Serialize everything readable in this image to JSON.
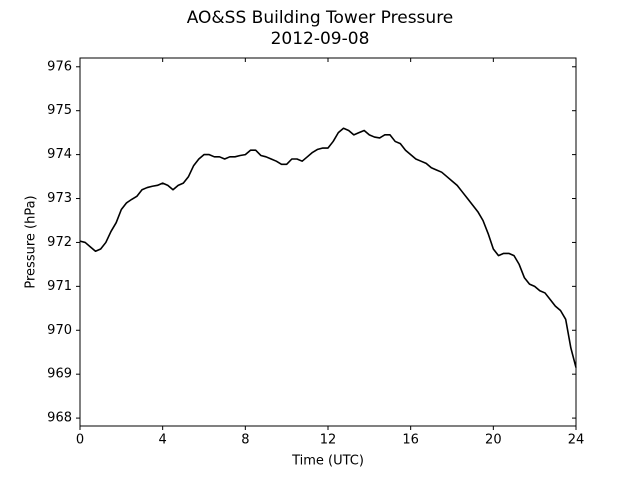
{
  "chart_data": {
    "type": "line",
    "title": "AO&SS Building Tower Pressure",
    "subtitle": "2012-09-08",
    "x_label": "Time (UTC)",
    "y_label": "Pressure (hPa)",
    "xlim": [
      0,
      24
    ],
    "xticks": [
      0,
      4,
      8,
      12,
      16,
      20,
      24
    ],
    "ylim": [
      967.82,
      976.2
    ],
    "yticks": [
      968,
      969,
      970,
      971,
      972,
      973,
      974,
      975,
      976
    ],
    "grid": false,
    "x": [
      0,
      0.25,
      0.5,
      0.75,
      1,
      1.25,
      1.5,
      1.75,
      2,
      2.25,
      2.5,
      2.75,
      3,
      3.25,
      3.5,
      3.75,
      4,
      4.25,
      4.5,
      4.75,
      5,
      5.25,
      5.5,
      5.75,
      6,
      6.25,
      6.5,
      6.75,
      7,
      7.25,
      7.5,
      7.75,
      8,
      8.25,
      8.5,
      8.75,
      9,
      9.25,
      9.5,
      9.75,
      10,
      10.25,
      10.5,
      10.75,
      11,
      11.25,
      11.5,
      11.75,
      12,
      12.25,
      12.5,
      12.75,
      13,
      13.25,
      13.5,
      13.75,
      14,
      14.25,
      14.5,
      14.75,
      15,
      15.25,
      15.5,
      15.75,
      16,
      16.25,
      16.5,
      16.75,
      17,
      17.25,
      17.5,
      17.75,
      18,
      18.25,
      18.5,
      18.75,
      19,
      19.25,
      19.5,
      19.75,
      20,
      20.25,
      20.5,
      20.75,
      21,
      21.25,
      21.5,
      21.75,
      22,
      22.25,
      22.5,
      22.75,
      23,
      23.25,
      23.5,
      23.75,
      24
    ],
    "series": [
      {
        "name": "Pressure",
        "color": "#000000",
        "values": [
          972.03,
          972.0,
          971.9,
          971.8,
          971.85,
          972.0,
          972.25,
          972.45,
          972.75,
          972.9,
          972.98,
          973.05,
          973.2,
          973.25,
          973.28,
          973.3,
          973.35,
          973.3,
          973.2,
          973.3,
          973.35,
          973.5,
          973.75,
          973.9,
          974.0,
          974.0,
          973.95,
          973.95,
          973.9,
          973.95,
          973.95,
          973.98,
          974.0,
          974.1,
          974.1,
          973.98,
          973.95,
          973.9,
          973.85,
          973.78,
          973.78,
          973.9,
          973.9,
          973.85,
          973.95,
          974.05,
          974.12,
          974.15,
          974.15,
          974.3,
          974.5,
          974.6,
          974.55,
          974.45,
          974.5,
          974.55,
          974.45,
          974.4,
          974.38,
          974.45,
          974.45,
          974.3,
          974.25,
          974.1,
          974.0,
          973.9,
          973.85,
          973.8,
          973.7,
          973.65,
          973.6,
          973.5,
          973.4,
          973.3,
          973.15,
          973.0,
          972.85,
          972.7,
          972.5,
          972.2,
          971.85,
          971.7,
          971.75,
          971.75,
          971.7,
          971.5,
          971.2,
          971.05,
          971.0,
          970.9,
          970.85,
          970.7,
          970.55,
          970.45,
          970.25,
          969.6,
          969.15
        ]
      }
    ]
  }
}
